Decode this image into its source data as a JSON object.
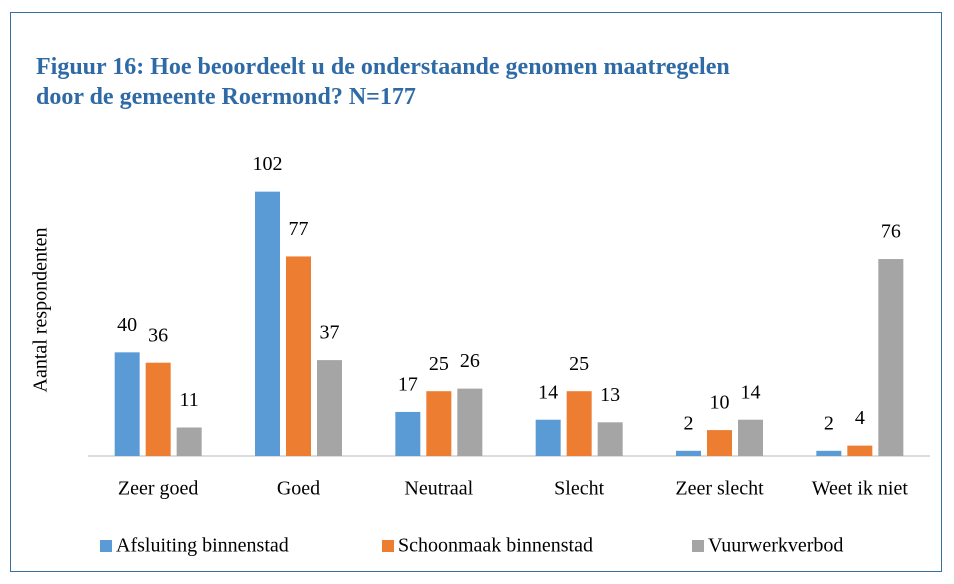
{
  "chart_data": {
    "type": "bar",
    "title": "Figuur 16: Hoe beoordeelt u de onderstaande genomen maatregelen door de gemeente Roermond? N=177",
    "y_label": "Aantal respondenten",
    "categories": [
      "Zeer goed",
      "Goed",
      "Neutraal",
      "Slecht",
      "Zeer slecht",
      "Weet ik niet"
    ],
    "series": [
      {
        "name": "Afsluiting binnenstad",
        "color": "#5b9bd5",
        "values": [
          40,
          102,
          17,
          14,
          2,
          2
        ]
      },
      {
        "name": "Schoonmaak binnenstad",
        "color": "#ed7d31",
        "values": [
          36,
          77,
          25,
          25,
          10,
          4
        ]
      },
      {
        "name": "Vuurwerkverbod",
        "color": "#a5a5a5",
        "values": [
          11,
          37,
          26,
          13,
          14,
          76
        ]
      }
    ],
    "ylim": [
      0,
      120
    ],
    "legend": "bottom"
  }
}
